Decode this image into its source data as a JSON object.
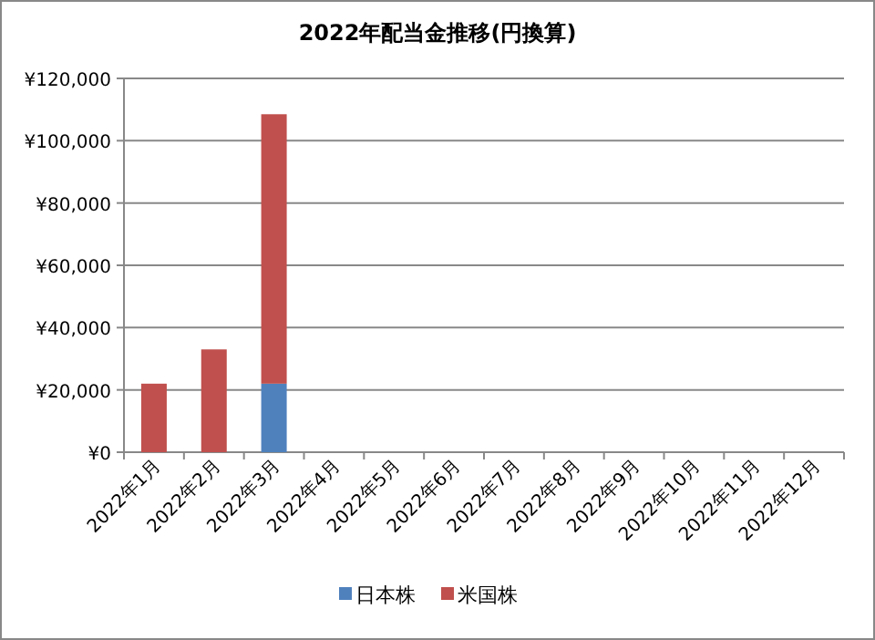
{
  "chart_data": {
    "type": "bar",
    "title": "2022年配当金推移(円換算)",
    "stacked": true,
    "categories": [
      "2022年1月",
      "2022年2月",
      "2022年3月",
      "2022年4月",
      "2022年5月",
      "2022年6月",
      "2022年7月",
      "2022年8月",
      "2022年9月",
      "2022年10月",
      "2022年11月",
      "2022年12月"
    ],
    "series": [
      {
        "name": "日本株",
        "color": "#4f81bd",
        "values": [
          null,
          null,
          22000,
          null,
          null,
          null,
          null,
          null,
          null,
          null,
          null,
          null
        ]
      },
      {
        "name": "米国株",
        "color": "#c0504d",
        "values": [
          22000,
          33000,
          86500,
          null,
          null,
          null,
          null,
          null,
          null,
          null,
          null,
          null
        ]
      }
    ],
    "ylim": [
      0,
      120000
    ],
    "yticks": [
      {
        "value": 0,
        "label": "¥0"
      },
      {
        "value": 20000,
        "label": "¥20,000"
      },
      {
        "value": 40000,
        "label": "¥40,000"
      },
      {
        "value": 60000,
        "label": "¥60,000"
      },
      {
        "value": 80000,
        "label": "¥80,000"
      },
      {
        "value": 100000,
        "label": "¥100,000"
      },
      {
        "value": 120000,
        "label": "¥120,000"
      }
    ],
    "grid": "y",
    "legend": "bottom"
  }
}
